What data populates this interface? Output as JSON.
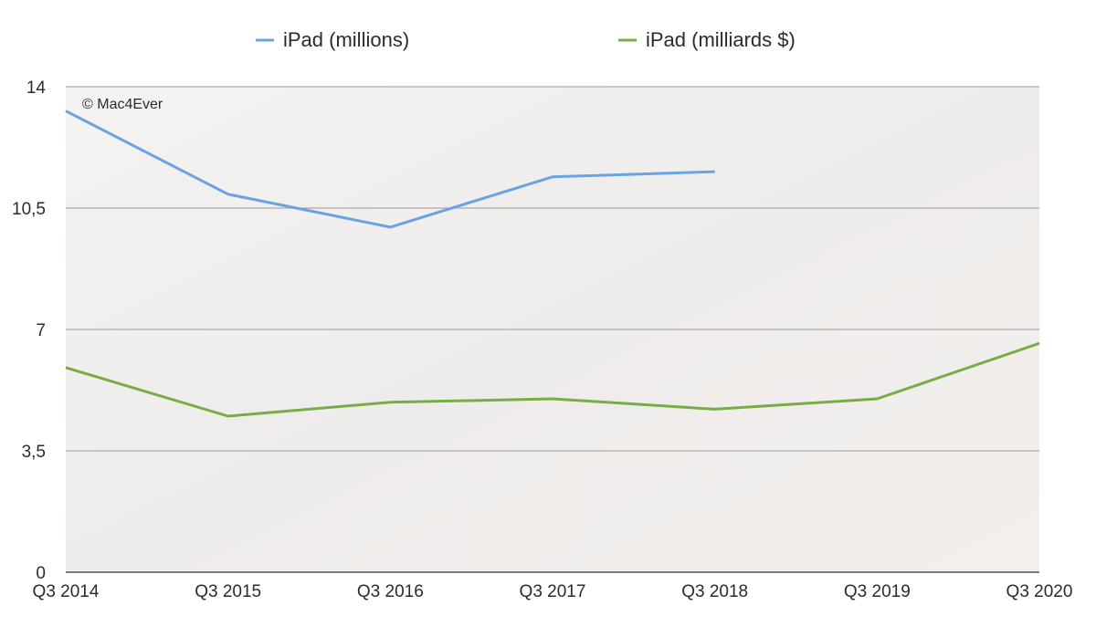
{
  "chart_data": {
    "type": "line",
    "categories": [
      "Q3 2014",
      "Q3 2015",
      "Q3 2016",
      "Q3 2017",
      "Q3 2018",
      "Q3 2019",
      "Q3 2020"
    ],
    "series": [
      {
        "name": "iPad (millions)",
        "color": "#6aa3e3",
        "values": [
          13.3,
          10.9,
          9.95,
          11.4,
          11.55,
          null,
          null
        ]
      },
      {
        "name": "iPad (milliards $)",
        "color": "#78ad45",
        "values": [
          5.9,
          4.5,
          4.9,
          5.0,
          4.7,
          5.0,
          6.6
        ]
      }
    ],
    "ylim": [
      0,
      14
    ],
    "yticks": [
      0,
      {
        "value": 3.5,
        "label": "3,5"
      },
      7,
      {
        "value": 10.5,
        "label": "10,5"
      },
      14
    ],
    "grid": true,
    "annotation": "© Mac4Ever",
    "legend": "top"
  }
}
